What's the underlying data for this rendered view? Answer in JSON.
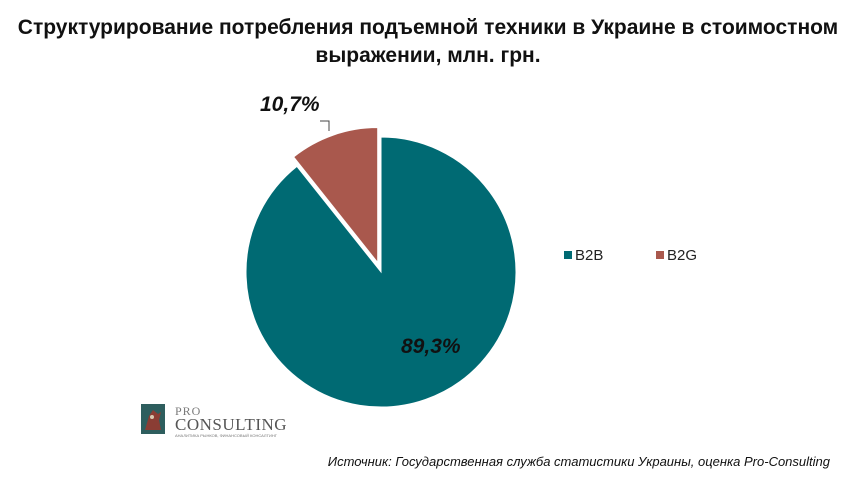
{
  "chart_data": {
    "type": "pie",
    "title": "Структурирование потребления подъемной техники в Украине в стоимостном выражении, млн. грн.",
    "slices": [
      {
        "name": "B2B",
        "value": 89.3,
        "label": "89,3%",
        "color": "#006a73"
      },
      {
        "name": "B2G",
        "value": 10.7,
        "label": "10,7%",
        "color": "#a9584d"
      }
    ],
    "legend_position": "right",
    "exploded": "B2G"
  },
  "logo": {
    "pro": "PRO",
    "consulting": "CONSULTING",
    "tagline": "АНАЛИТИКА РЫНКОВ, ФИНАНСОВЫЙ КОНСАЛТИНГ"
  },
  "source": "Источник: Государственная служба статистики Украины, оценка Pro-Consulting"
}
